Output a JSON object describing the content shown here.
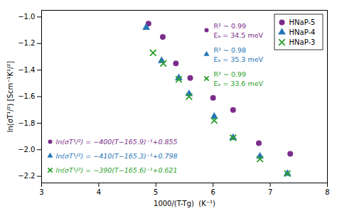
{
  "chart_data": {
    "type": "scatter",
    "xlabel": "1000/(T-Tg)  (K⁻¹)",
    "ylabel": "ln(σT¹/²) [Scm⁻¹K¹/²]",
    "xlim": [
      3,
      8
    ],
    "ylim": [
      -2.25,
      -0.95
    ],
    "xticks": [
      3,
      4,
      5,
      6,
      7,
      8
    ],
    "yticks": [
      -2.2,
      {
        "value": -2,
        "label": "−2.0"
      },
      -1.8,
      -1.6,
      -1.4,
      -1.2,
      {
        "value": -1,
        "label": "−1.0"
      }
    ],
    "grid": false,
    "legend": "upper right",
    "series": [
      {
        "name": "HNaP-5",
        "color": "#7B2D8B",
        "marker": "circle",
        "x": [
          4.87,
          5.12,
          5.35,
          5.6,
          6.0,
          6.35,
          6.8,
          7.35
        ],
        "y": [
          -1.05,
          -1.15,
          -1.35,
          -1.46,
          -1.61,
          -1.7,
          -1.95,
          -2.03
        ]
      },
      {
        "name": "HNaP-4",
        "color": "#2575B7",
        "marker": "triangle",
        "x": [
          4.83,
          5.1,
          5.4,
          5.58,
          6.02,
          6.35,
          6.82,
          7.3
        ],
        "y": [
          -1.08,
          -1.33,
          -1.46,
          -1.58,
          -1.75,
          -1.91,
          -2.05,
          -2.18
        ]
      },
      {
        "name": "HNaP-3",
        "color": "#2BA02B",
        "marker": "x",
        "x": [
          4.95,
          5.13,
          5.4,
          5.58,
          6.02,
          6.35,
          6.82,
          7.3
        ],
        "y": [
          -1.27,
          -1.35,
          -1.47,
          -1.6,
          -1.78,
          -1.91,
          -2.07,
          -2.18
        ]
      }
    ],
    "annotations": [
      {
        "text": "ln(σT¹/²) = −400(T−165.9)⁻¹+0.855",
        "series": "HNaP-5"
      },
      {
        "text": "ln(σT¹/²) = −410(T−165.3)⁻¹+0.798",
        "series": "HNaP-4"
      },
      {
        "text": "ln(σT¹/²) = −390(T−165.6)⁻¹+0.621",
        "series": "HNaP-3"
      },
      {
        "text": "R² ~ 0.99\nEₐ = 34.5 meV",
        "series": "HNaP-5"
      },
      {
        "text": "R² ~ 0.98\nEₐ = 35.3 meV",
        "series": "HNaP-4"
      },
      {
        "text": "R² ~ 0.99\nEₐ = 33.6 meV",
        "series": "HNaP-3"
      }
    ]
  }
}
